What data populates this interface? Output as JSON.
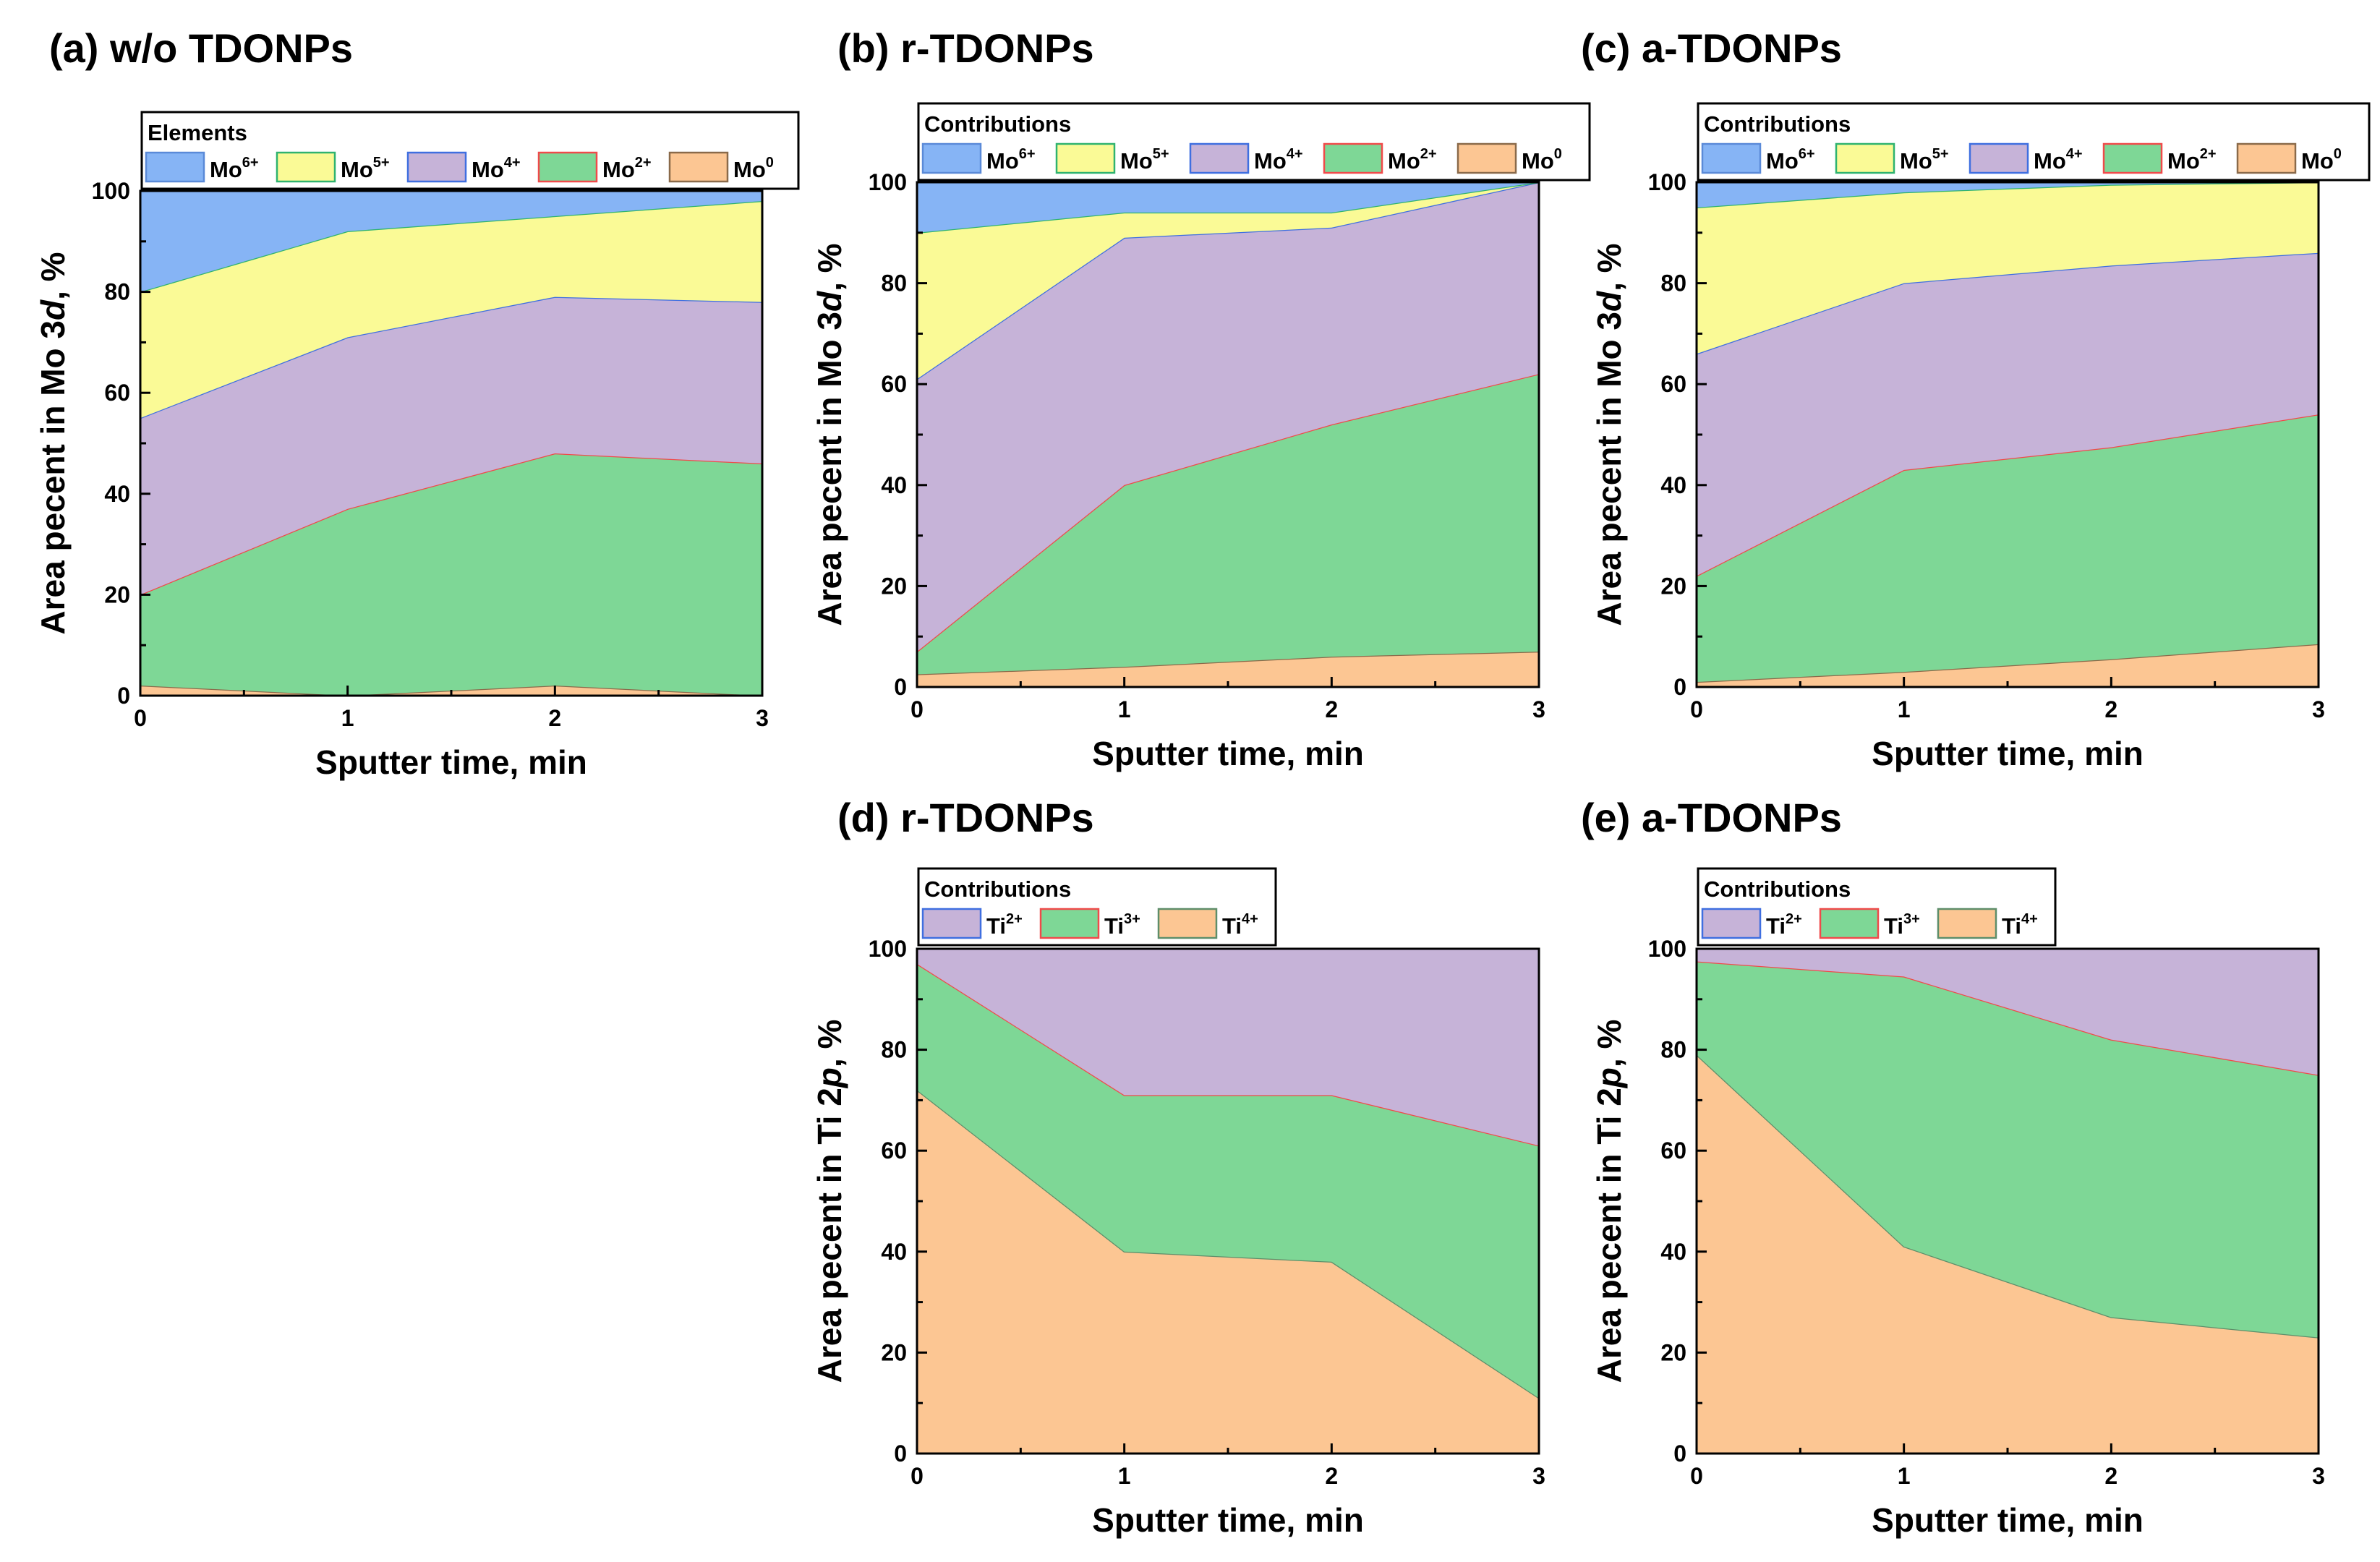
{
  "chart_data": [
    {
      "id": "a",
      "type": "area",
      "stacked": true,
      "title": "(a) w/o TDONPs",
      "xlabel": "Sputter time, min",
      "ylabel_main": "Area pecent in Mo 3",
      "ylabel_italic": "d",
      "ylabel_tail": ", %",
      "xlim": [
        0,
        3
      ],
      "ylim": [
        0,
        100
      ],
      "xticks": [
        "0",
        "1",
        "2",
        "3"
      ],
      "yticks": [
        "0",
        "20",
        "40",
        "60",
        "80",
        "100"
      ],
      "x": [
        0,
        1,
        2,
        3
      ],
      "legend": {
        "title": "Elements",
        "placement": "top"
      },
      "series": [
        {
          "name": "Mo",
          "sup": "0",
          "values": [
            2,
            0,
            2,
            0
          ],
          "fill": "#FCC693",
          "stroke": "#8A6A4A"
        },
        {
          "name": "Mo",
          "sup": "2+",
          "values": [
            18,
            37,
            46,
            46
          ],
          "fill": "#7ED796",
          "stroke": "#F04A4A"
        },
        {
          "name": "Mo",
          "sup": "4+",
          "values": [
            35,
            34,
            31,
            32
          ],
          "fill": "#C6B3D8",
          "stroke": "#3F6FE0"
        },
        {
          "name": "Mo",
          "sup": "5+",
          "values": [
            25,
            21,
            16,
            20
          ],
          "fill": "#FAFA96",
          "stroke": "#2FB36F"
        },
        {
          "name": "Mo",
          "sup": "6+",
          "values": [
            20,
            8,
            5,
            2
          ],
          "fill": "#86B4F5",
          "stroke": "#5A8AD8"
        }
      ]
    },
    {
      "id": "b",
      "type": "area",
      "stacked": true,
      "title": "(b) r-TDONPs",
      "xlabel": "Sputter time, min",
      "ylabel_main": "Area pecent in Mo 3",
      "ylabel_italic": "d",
      "ylabel_tail": ", %",
      "xlim": [
        0,
        3
      ],
      "ylim": [
        0,
        100
      ],
      "xticks": [
        "0",
        "1",
        "2",
        "3"
      ],
      "yticks": [
        "0",
        "20",
        "40",
        "60",
        "80",
        "100"
      ],
      "x": [
        0,
        1,
        2,
        3
      ],
      "legend": {
        "title": "Contributions",
        "placement": "top"
      },
      "series": [
        {
          "name": "Mo",
          "sup": "0",
          "values": [
            2.5,
            4,
            6,
            7
          ],
          "fill": "#FCC693",
          "stroke": "#8A6A4A"
        },
        {
          "name": "Mo",
          "sup": "2+",
          "values": [
            4.5,
            36,
            46,
            55
          ],
          "fill": "#7ED796",
          "stroke": "#F04A4A"
        },
        {
          "name": "Mo",
          "sup": "4+",
          "values": [
            54,
            49,
            39,
            38
          ],
          "fill": "#C6B3D8",
          "stroke": "#3F6FE0"
        },
        {
          "name": "Mo",
          "sup": "5+",
          "values": [
            29,
            5,
            3,
            0
          ],
          "fill": "#FAFA96",
          "stroke": "#2FB36F"
        },
        {
          "name": "Mo",
          "sup": "6+",
          "values": [
            10,
            6,
            6,
            0
          ],
          "fill": "#86B4F5",
          "stroke": "#5A8AD8"
        }
      ]
    },
    {
      "id": "c",
      "type": "area",
      "stacked": true,
      "title": "(c) a-TDONPs",
      "xlabel": "Sputter time, min",
      "ylabel_main": "Area pecent in Mo 3",
      "ylabel_italic": "d",
      "ylabel_tail": ", %",
      "xlim": [
        0,
        3
      ],
      "ylim": [
        0,
        100
      ],
      "xticks": [
        "0",
        "1",
        "2",
        "3"
      ],
      "yticks": [
        "0",
        "20",
        "40",
        "60",
        "80",
        "100"
      ],
      "x": [
        0,
        1,
        2,
        3
      ],
      "legend": {
        "title": "Contributions",
        "placement": "top"
      },
      "series": [
        {
          "name": "Mo",
          "sup": "0",
          "values": [
            1,
            3,
            5.5,
            8.5
          ],
          "fill": "#FCC693",
          "stroke": "#8A6A4A"
        },
        {
          "name": "Mo",
          "sup": "2+",
          "values": [
            21,
            40,
            42,
            45.5
          ],
          "fill": "#7ED796",
          "stroke": "#F04A4A"
        },
        {
          "name": "Mo",
          "sup": "4+",
          "values": [
            44,
            37,
            36,
            32
          ],
          "fill": "#C6B3D8",
          "stroke": "#3F6FE0"
        },
        {
          "name": "Mo",
          "sup": "5+",
          "values": [
            29,
            18,
            16,
            14
          ],
          "fill": "#FAFA96",
          "stroke": "#2FB36F"
        },
        {
          "name": "Mo",
          "sup": "6+",
          "values": [
            5,
            2,
            0.5,
            0
          ],
          "fill": "#86B4F5",
          "stroke": "#5A8AD8"
        }
      ]
    },
    {
      "id": "d",
      "type": "area",
      "stacked": true,
      "title": "(d) r-TDONPs",
      "xlabel": "Sputter time, min",
      "ylabel_main": "Area pecent in Ti 2",
      "ylabel_italic": "p",
      "ylabel_tail": ", %",
      "xlim": [
        0,
        3
      ],
      "ylim": [
        0,
        100
      ],
      "xticks": [
        "0",
        "1",
        "2",
        "3"
      ],
      "yticks": [
        "0",
        "20",
        "40",
        "60",
        "80",
        "100"
      ],
      "x": [
        0,
        1,
        2,
        3
      ],
      "legend": {
        "title": "Contributions",
        "placement": "top"
      },
      "series": [
        {
          "name": "Ti",
          "sup": "4+",
          "values": [
            72,
            40,
            38,
            11
          ],
          "fill": "#FCC693",
          "stroke": "#5E8E6A"
        },
        {
          "name": "Ti",
          "sup": "3+",
          "values": [
            25,
            31,
            33,
            50
          ],
          "fill": "#7ED796",
          "stroke": "#F04A4A"
        },
        {
          "name": "Ti",
          "sup": "2+",
          "values": [
            3,
            29,
            29,
            39
          ],
          "fill": "#C6B3D8",
          "stroke": "#3F6FE0"
        }
      ]
    },
    {
      "id": "e",
      "type": "area",
      "stacked": true,
      "title": "(e) a-TDONPs",
      "xlabel": "Sputter time, min",
      "ylabel_main": "Area pecent in Ti 2",
      "ylabel_italic": "p",
      "ylabel_tail": ", %",
      "xlim": [
        0,
        3
      ],
      "ylim": [
        0,
        100
      ],
      "xticks": [
        "0",
        "1",
        "2",
        "3"
      ],
      "yticks": [
        "0",
        "20",
        "40",
        "60",
        "80",
        "100"
      ],
      "x": [
        0,
        1,
        2,
        3
      ],
      "legend": {
        "title": "Contributions",
        "placement": "top"
      },
      "series": [
        {
          "name": "Ti",
          "sup": "4+",
          "values": [
            79,
            41,
            27,
            23
          ],
          "fill": "#FCC693",
          "stroke": "#5E8E6A"
        },
        {
          "name": "Ti",
          "sup": "3+",
          "values": [
            18.5,
            53.5,
            55,
            52
          ],
          "fill": "#7ED796",
          "stroke": "#F04A4A"
        },
        {
          "name": "Ti",
          "sup": "2+",
          "values": [
            2.5,
            5.5,
            18,
            25
          ],
          "fill": "#C6B3D8",
          "stroke": "#3F6FE0"
        }
      ]
    }
  ]
}
